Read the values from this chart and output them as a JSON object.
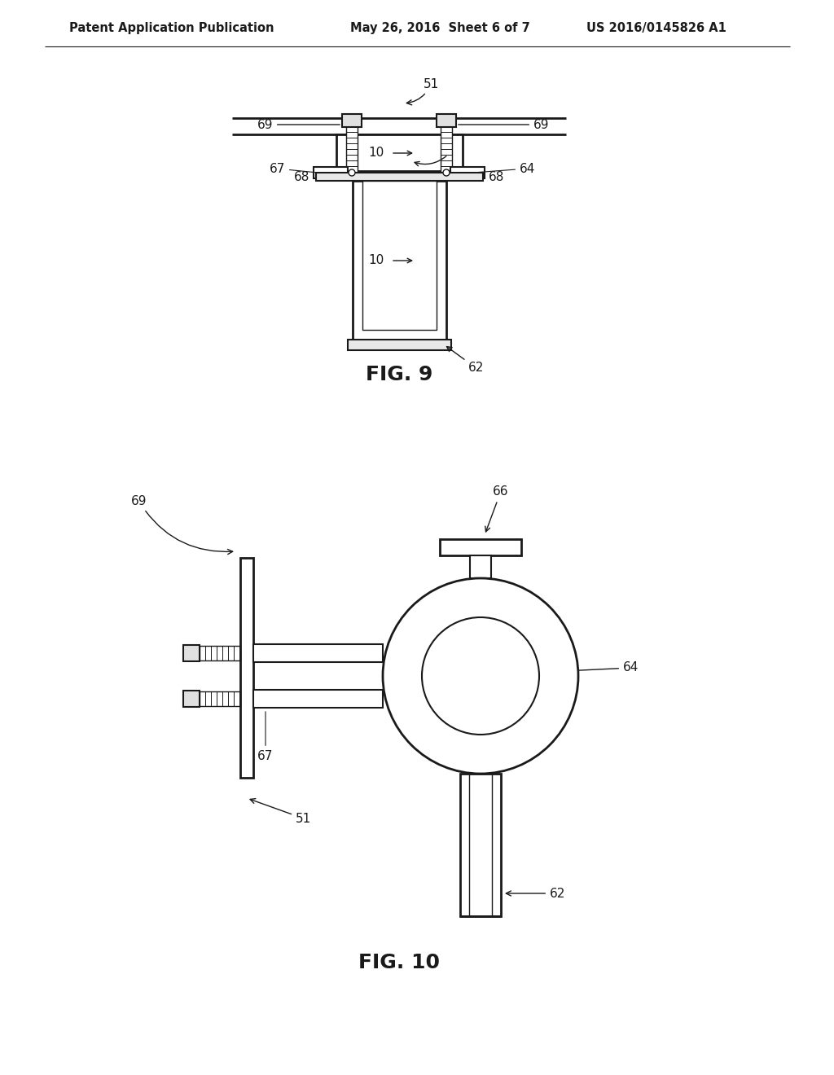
{
  "bg_color": "#ffffff",
  "line_color": "#1a1a1a",
  "header_left": "Patent Application Publication",
  "header_mid": "May 26, 2016  Sheet 6 of 7",
  "header_right": "US 2016/0145826 A1",
  "fig9_label": "FIG. 9",
  "fig10_label": "FIG. 10",
  "label_fontsize": 11,
  "header_fontsize": 10.5,
  "figlabel_fontsize": 18
}
